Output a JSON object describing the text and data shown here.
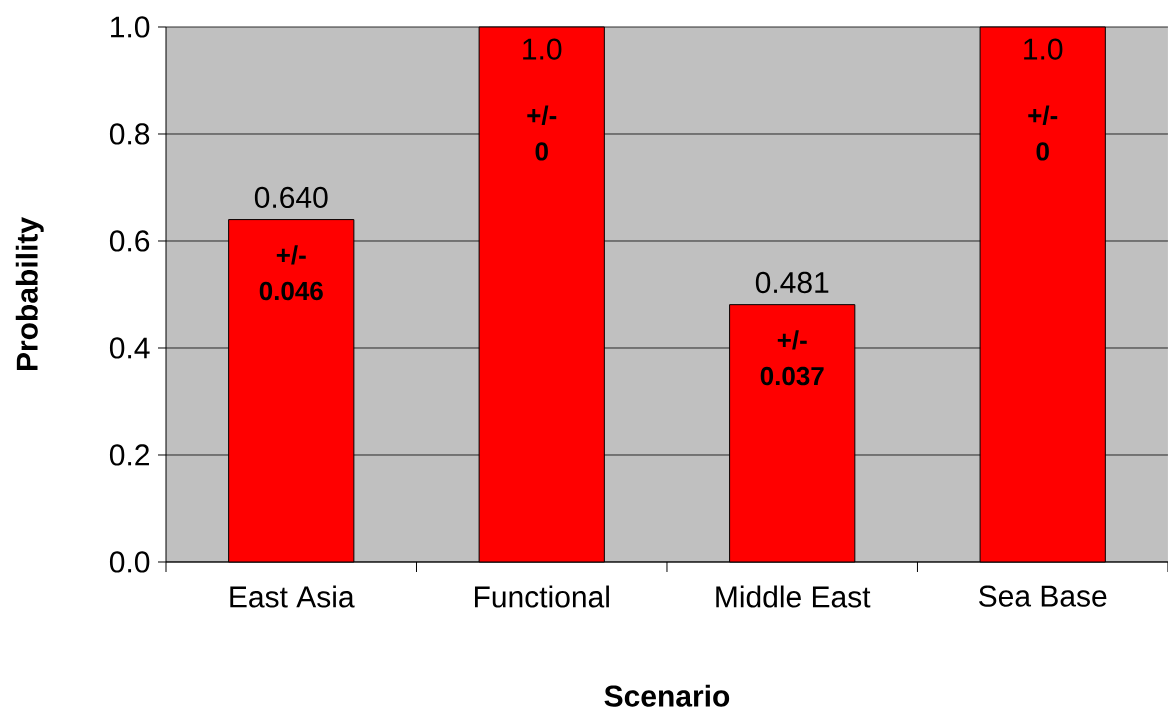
{
  "chart_data": {
    "type": "bar",
    "xlabel": "Scenario",
    "ylabel": "Probability",
    "categories": [
      "East Asia",
      "Functional",
      "Middle East",
      "Sea Base"
    ],
    "values": [
      0.64,
      1.0,
      0.481,
      1.0
    ],
    "color": "#ff0000",
    "value_labels": [
      "0.640",
      "1.0",
      "0.481",
      "1.0"
    ],
    "ylim": [
      0,
      1
    ],
    "yticks": [
      {
        "value": 0,
        "label": "0.0"
      },
      0.2,
      0.4,
      0.6,
      0.8,
      {
        "value": 1,
        "label": "1.0"
      }
    ],
    "grid": "y",
    "annotations": [
      "+/- 0.046",
      "+/- 0",
      "+/- 0.037",
      "+/- 0"
    ]
  }
}
